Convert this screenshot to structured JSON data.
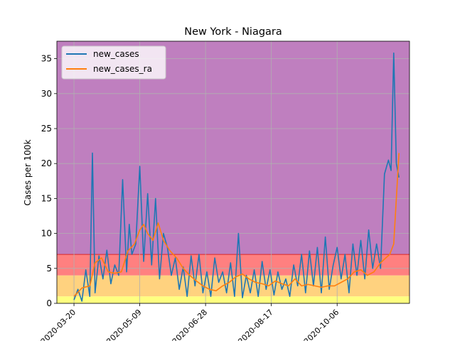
{
  "chart_data": {
    "type": "line",
    "title": "New York - Niagara",
    "xlabel": "",
    "ylabel": "Cases per 100k",
    "xlim": [
      "2020-03-07",
      "2020-11-30"
    ],
    "ylim": [
      0,
      37.5
    ],
    "x_ticks": [
      "2020-03-20",
      "2020-05-09",
      "2020-06-28",
      "2020-08-17",
      "2020-10-06"
    ],
    "y_ticks": [
      0,
      5,
      10,
      15,
      20,
      25,
      30,
      35
    ],
    "grid": true,
    "legend_position": "top-left",
    "background_bands": [
      {
        "from": 0,
        "to": 1,
        "color": "#ffff80"
      },
      {
        "from": 1,
        "to": 4,
        "color": "#ffd27f"
      },
      {
        "from": 4,
        "to": 7,
        "color": "#ff8080"
      },
      {
        "from": 7,
        "to": 37.5,
        "color": "#bf7fbf"
      }
    ],
    "threshold_line": {
      "value": 7,
      "color": "#d62728"
    },
    "series": [
      {
        "name": "new_cases",
        "color": "#1f77b4",
        "x": [
          "2020-03-20",
          "2020-03-23",
          "2020-03-26",
          "2020-03-29",
          "2020-04-01",
          "2020-04-03",
          "2020-04-05",
          "2020-04-08",
          "2020-04-11",
          "2020-04-14",
          "2020-04-17",
          "2020-04-20",
          "2020-04-23",
          "2020-04-26",
          "2020-04-29",
          "2020-05-01",
          "2020-05-03",
          "2020-05-06",
          "2020-05-09",
          "2020-05-12",
          "2020-05-15",
          "2020-05-18",
          "2020-05-21",
          "2020-05-24",
          "2020-05-27",
          "2020-05-30",
          "2020-06-02",
          "2020-06-05",
          "2020-06-08",
          "2020-06-11",
          "2020-06-14",
          "2020-06-17",
          "2020-06-20",
          "2020-06-23",
          "2020-06-26",
          "2020-06-29",
          "2020-07-02",
          "2020-07-05",
          "2020-07-08",
          "2020-07-11",
          "2020-07-14",
          "2020-07-17",
          "2020-07-20",
          "2020-07-23",
          "2020-07-26",
          "2020-07-29",
          "2020-08-01",
          "2020-08-04",
          "2020-08-07",
          "2020-08-10",
          "2020-08-13",
          "2020-08-16",
          "2020-08-19",
          "2020-08-22",
          "2020-08-25",
          "2020-08-28",
          "2020-08-31",
          "2020-09-03",
          "2020-09-06",
          "2020-09-09",
          "2020-09-12",
          "2020-09-15",
          "2020-09-18",
          "2020-09-21",
          "2020-09-24",
          "2020-09-27",
          "2020-09-30",
          "2020-10-03",
          "2020-10-06",
          "2020-10-09",
          "2020-10-12",
          "2020-10-15",
          "2020-10-18",
          "2020-10-21",
          "2020-10-24",
          "2020-10-27",
          "2020-10-30",
          "2020-11-02",
          "2020-11-05",
          "2020-11-08",
          "2020-11-11",
          "2020-11-14",
          "2020-11-16",
          "2020-11-18",
          "2020-11-20",
          "2020-11-22"
        ],
        "y": [
          0.5,
          2.0,
          0.3,
          4.8,
          1.0,
          21.5,
          1.5,
          6.8,
          3.5,
          7.6,
          2.8,
          5.5,
          4.0,
          17.7,
          4.5,
          11.3,
          7.0,
          8.5,
          19.6,
          6.0,
          15.7,
          5.5,
          15.0,
          3.5,
          10.0,
          8.0,
          4.0,
          6.5,
          2.0,
          5.2,
          1.0,
          6.8,
          2.5,
          7.0,
          1.5,
          4.5,
          1.0,
          6.5,
          3.0,
          4.5,
          1.5,
          5.8,
          1.0,
          10.0,
          0.8,
          4.0,
          1.5,
          4.8,
          1.0,
          6.0,
          2.0,
          4.8,
          1.2,
          4.5,
          2.0,
          3.5,
          1.0,
          5.5,
          2.5,
          7.0,
          1.5,
          7.5,
          2.5,
          8.0,
          1.5,
          9.5,
          2.0,
          5.5,
          8.0,
          3.5,
          7.0,
          1.5,
          8.5,
          4.0,
          9.0,
          3.5,
          10.5,
          5.0,
          8.5,
          5.0,
          18.5,
          20.5,
          19.0,
          35.8,
          20.0,
          18.0
        ]
      },
      {
        "name": "new_cases_ra",
        "color": "#ff7f0e",
        "x": [
          "2020-03-20",
          "2020-03-26",
          "2020-04-01",
          "2020-04-05",
          "2020-04-10",
          "2020-04-15",
          "2020-04-20",
          "2020-04-25",
          "2020-04-30",
          "2020-05-05",
          "2020-05-09",
          "2020-05-12",
          "2020-05-15",
          "2020-05-19",
          "2020-05-23",
          "2020-05-27",
          "2020-06-01",
          "2020-06-06",
          "2020-06-11",
          "2020-06-16",
          "2020-06-21",
          "2020-06-26",
          "2020-07-01",
          "2020-07-06",
          "2020-07-11",
          "2020-07-16",
          "2020-07-21",
          "2020-07-26",
          "2020-07-31",
          "2020-08-05",
          "2020-08-10",
          "2020-08-15",
          "2020-08-20",
          "2020-08-25",
          "2020-08-30",
          "2020-09-04",
          "2020-09-09",
          "2020-09-14",
          "2020-09-19",
          "2020-09-24",
          "2020-09-29",
          "2020-10-04",
          "2020-10-09",
          "2020-10-14",
          "2020-10-19",
          "2020-10-24",
          "2020-10-29",
          "2020-11-03",
          "2020-11-08",
          "2020-11-12",
          "2020-11-15",
          "2020-11-18",
          "2020-11-20",
          "2020-11-22"
        ],
        "y": [
          1.0,
          2.2,
          2.5,
          5.8,
          6.5,
          4.5,
          4.3,
          4.5,
          7.5,
          8.5,
          10.5,
          11.3,
          10.0,
          9.0,
          11.5,
          9.0,
          7.5,
          6.5,
          5.0,
          4.0,
          3.2,
          2.5,
          2.0,
          1.8,
          2.5,
          3.0,
          3.8,
          4.2,
          3.5,
          3.0,
          2.8,
          2.5,
          3.2,
          2.8,
          2.5,
          3.5,
          2.5,
          2.7,
          2.5,
          2.3,
          2.5,
          2.5,
          3.0,
          3.5,
          4.5,
          4.8,
          4.0,
          4.5,
          5.8,
          6.5,
          7.0,
          8.5,
          15.0,
          21.5
        ]
      }
    ]
  }
}
